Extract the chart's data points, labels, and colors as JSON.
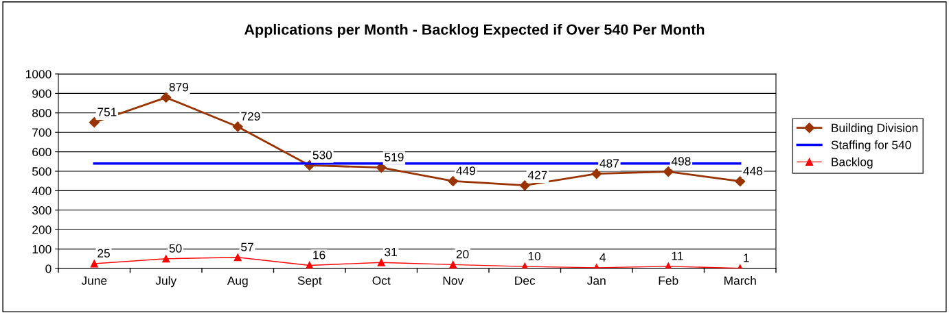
{
  "chart_data": {
    "type": "line",
    "title": "Applications per Month - Backlog Expected if Over 540 Per Month",
    "categories": [
      "June",
      "July",
      "Aug",
      "Sept",
      "Oct",
      "Nov",
      "Dec",
      "Jan",
      "Feb",
      "March"
    ],
    "series": [
      {
        "name": "Building Division",
        "color": "#993300",
        "marker": "diamond",
        "values": [
          751,
          879,
          729,
          530,
          519,
          449,
          427,
          487,
          498,
          448
        ],
        "value_labels": [
          "751",
          "879",
          "729",
          "530",
          "519",
          "449",
          "427",
          "487",
          "498",
          "448"
        ]
      },
      {
        "name": "Staffing for 540",
        "color": "#0000ff",
        "values": [
          540,
          540,
          540,
          540,
          540,
          540,
          540,
          540,
          540,
          540
        ]
      },
      {
        "name": "Backlog",
        "color": "#ff0000",
        "marker": "triangle",
        "values": [
          25,
          50,
          57,
          16,
          31,
          20,
          10,
          4,
          11,
          1
        ],
        "value_labels": [
          "25",
          "50",
          "57",
          "16",
          "31",
          "20",
          "10",
          "4",
          "11",
          "1"
        ]
      }
    ],
    "ylim": [
      0,
      1000
    ],
    "yticks": [
      0,
      100,
      200,
      300,
      400,
      500,
      600,
      700,
      800,
      900,
      1000
    ],
    "grid": "y",
    "legend": "right"
  }
}
